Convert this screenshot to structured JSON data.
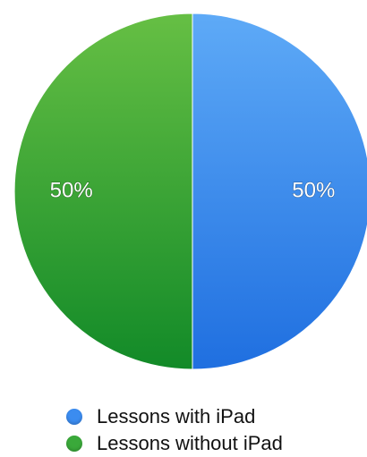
{
  "chart_data": {
    "type": "pie",
    "categories": [
      "Lessons with iPad",
      "Lessons without iPad"
    ],
    "values": [
      50,
      50
    ],
    "labels": [
      "50%",
      "50%"
    ],
    "colors": [
      "#3b8cf0",
      "#3aa93a"
    ],
    "legend_position": "bottom"
  }
}
